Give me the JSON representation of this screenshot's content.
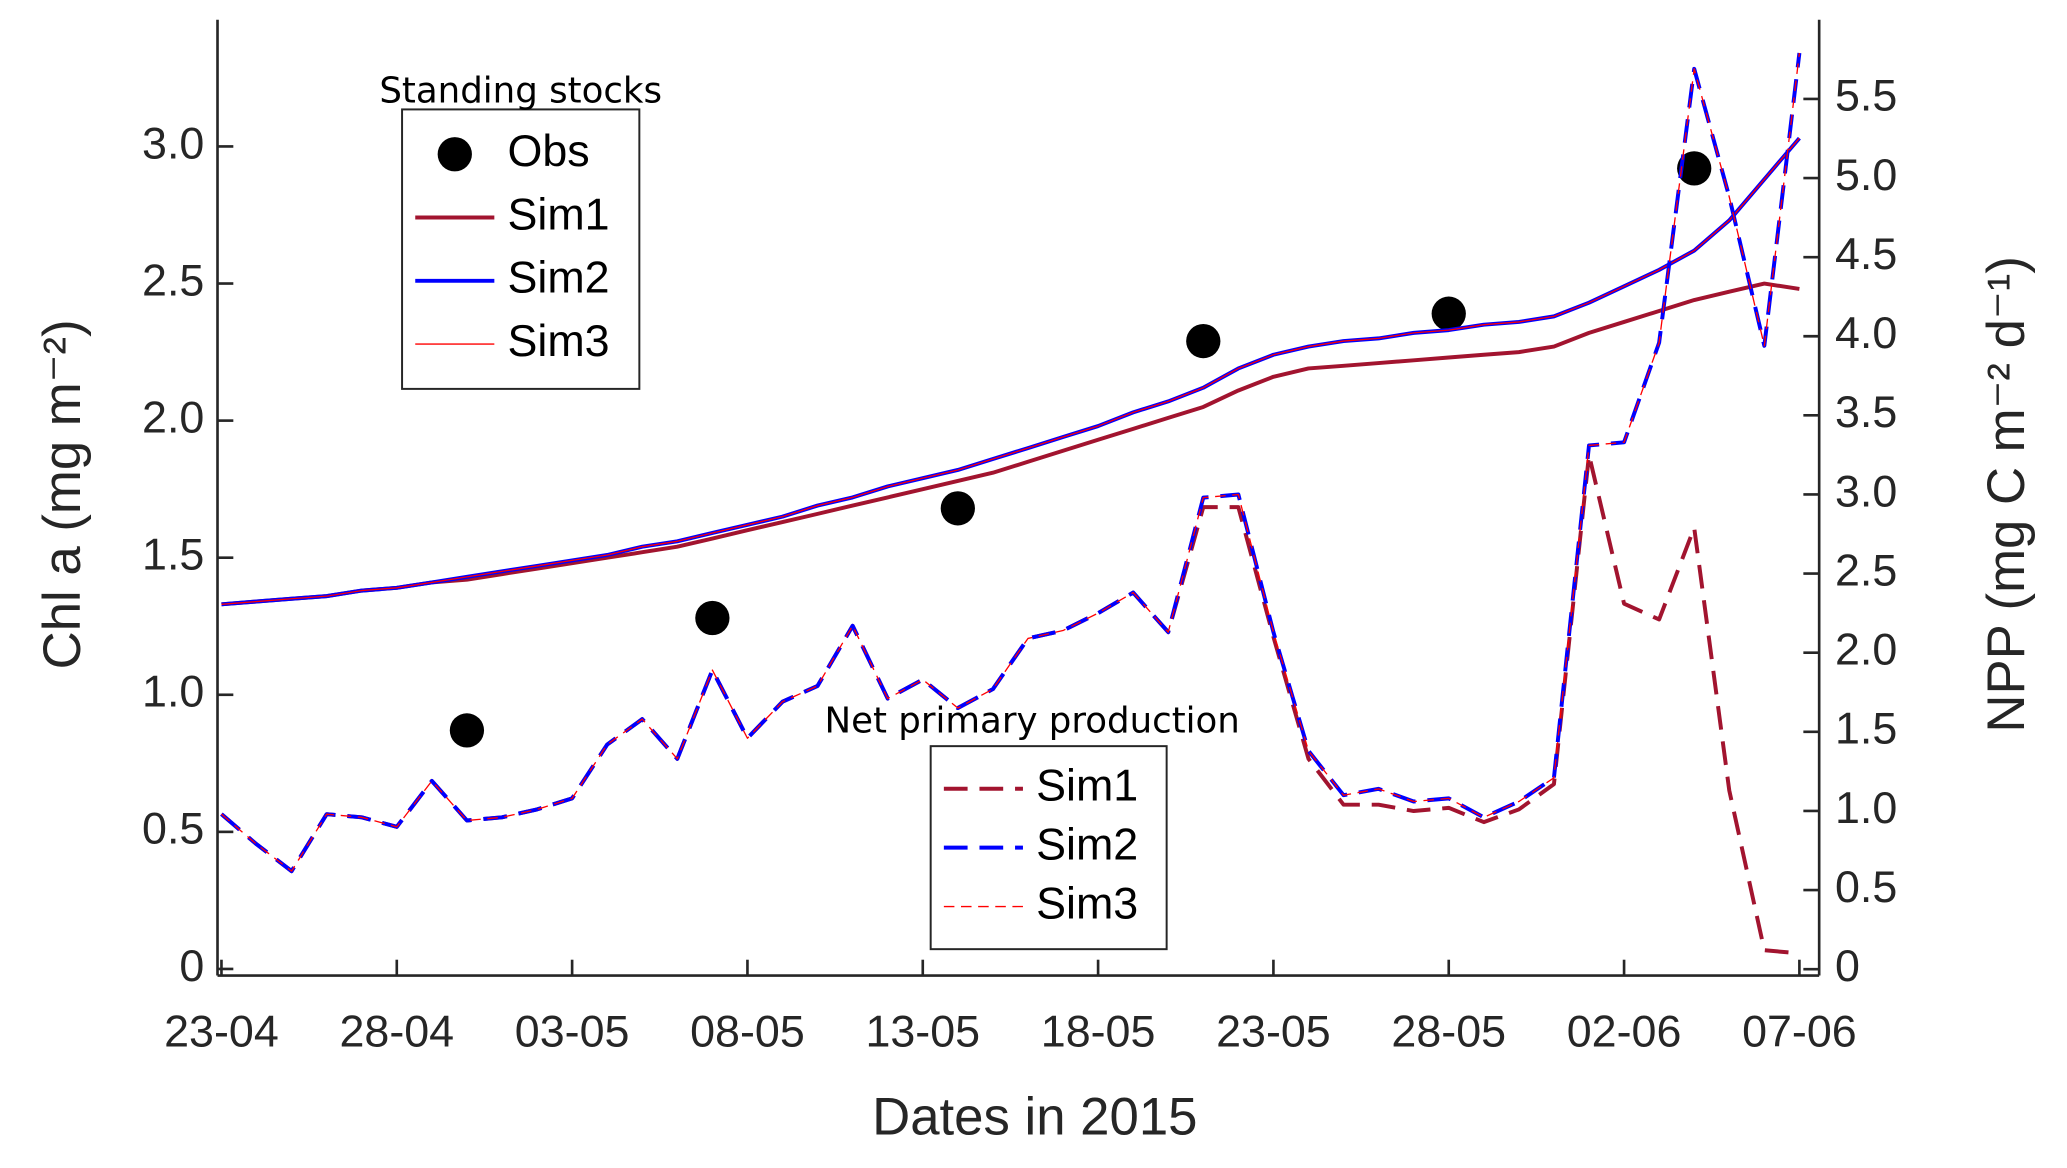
{
  "chart_data": {
    "type": "line",
    "xlabel": "Dates in 2015",
    "ylabel": "Chl a (mg m⁻²)",
    "y2label": "NPP (mg C m⁻² d⁻¹)",
    "x": [
      "23-04",
      "24-04",
      "25-04",
      "26-04",
      "27-04",
      "28-04",
      "29-04",
      "30-04",
      "01-05",
      "02-05",
      "03-05",
      "04-05",
      "05-05",
      "06-05",
      "07-05",
      "08-05",
      "09-05",
      "10-05",
      "11-05",
      "12-05",
      "13-05",
      "14-05",
      "15-05",
      "16-05",
      "17-05",
      "18-05",
      "19-05",
      "20-05",
      "21-05",
      "22-05",
      "23-05",
      "24-05",
      "25-05",
      "26-05",
      "27-05",
      "28-05",
      "29-05",
      "30-05",
      "31-05",
      "01-06",
      "02-06",
      "03-06",
      "04-06",
      "05-06",
      "06-06",
      "07-06"
    ],
    "xticks": [
      "23-04",
      "28-04",
      "03-05",
      "08-05",
      "13-05",
      "18-05",
      "23-05",
      "28-05",
      "02-06",
      "07-06"
    ],
    "ylim": [
      -0.024,
      3.462
    ],
    "yticks": [
      0,
      0.5,
      {
        "value": 1,
        "label": "1.0"
      },
      1.5,
      {
        "value": 2,
        "label": "2.0"
      },
      2.5,
      {
        "value": 3,
        "label": "3.0"
      }
    ],
    "y2lim": [
      -0.04,
      6.0
    ],
    "y2ticks": [
      0,
      0.5,
      {
        "value": 1,
        "label": "1.0"
      },
      1.5,
      {
        "value": 2,
        "label": "2.0"
      },
      2.5,
      {
        "value": 3,
        "label": "3.0"
      },
      3.5,
      {
        "value": 4,
        "label": "4.0"
      },
      4.5,
      {
        "value": 5,
        "label": "5.0"
      },
      5.5
    ],
    "series_groups": [
      {
        "title": "Standing stocks",
        "series": [
          {
            "name": "Obs",
            "color": "#000000",
            "style": "markers",
            "axis": "y",
            "values": [
              null,
              null,
              null,
              null,
              null,
              null,
              null,
              0.87,
              null,
              null,
              null,
              null,
              null,
              null,
              1.28,
              null,
              null,
              null,
              null,
              null,
              null,
              1.68,
              null,
              null,
              null,
              null,
              null,
              null,
              2.29,
              null,
              null,
              null,
              null,
              null,
              null,
              2.39,
              null,
              null,
              null,
              null,
              null,
              null,
              2.92,
              null,
              null,
              null
            ]
          },
          {
            "name": "Sim1",
            "color": "#a2142f",
            "style": "solid",
            "width": 3,
            "axis": "y",
            "values": [
              1.33,
              1.34,
              1.35,
              1.36,
              1.38,
              1.39,
              1.41,
              1.42,
              1.44,
              1.46,
              1.48,
              1.5,
              1.52,
              1.54,
              1.57,
              1.6,
              1.63,
              1.66,
              1.69,
              1.72,
              1.75,
              1.78,
              1.81,
              1.85,
              1.89,
              1.93,
              1.97,
              2.01,
              2.05,
              2.11,
              2.16,
              2.19,
              2.2,
              2.21,
              2.22,
              2.23,
              2.24,
              2.25,
              2.27,
              2.32,
              2.36,
              2.4,
              2.44,
              2.47,
              2.5,
              2.48
            ]
          },
          {
            "name": "Sim2",
            "color": "#0000ff",
            "style": "solid",
            "width": 3,
            "axis": "y",
            "values": [
              1.33,
              1.34,
              1.35,
              1.36,
              1.38,
              1.39,
              1.41,
              1.43,
              1.45,
              1.47,
              1.49,
              1.51,
              1.54,
              1.56,
              1.59,
              1.62,
              1.65,
              1.69,
              1.72,
              1.76,
              1.79,
              1.82,
              1.86,
              1.9,
              1.94,
              1.98,
              2.03,
              2.07,
              2.12,
              2.19,
              2.24,
              2.27,
              2.29,
              2.3,
              2.32,
              2.33,
              2.35,
              2.36,
              2.38,
              2.43,
              2.49,
              2.55,
              2.62,
              2.73,
              2.88,
              3.03
            ]
          },
          {
            "name": "Sim3",
            "color": "#ff0000",
            "style": "solid",
            "width": 1,
            "axis": "y",
            "values": [
              1.33,
              1.34,
              1.35,
              1.36,
              1.38,
              1.39,
              1.41,
              1.43,
              1.45,
              1.47,
              1.49,
              1.51,
              1.54,
              1.56,
              1.59,
              1.62,
              1.65,
              1.69,
              1.72,
              1.76,
              1.79,
              1.82,
              1.86,
              1.9,
              1.94,
              1.98,
              2.03,
              2.07,
              2.12,
              2.19,
              2.24,
              2.27,
              2.29,
              2.3,
              2.32,
              2.33,
              2.35,
              2.36,
              2.38,
              2.43,
              2.49,
              2.55,
              2.62,
              2.73,
              2.88,
              3.03
            ]
          }
        ]
      },
      {
        "title": "Net primary production",
        "series": [
          {
            "name": "Sim1",
            "color": "#a2142f",
            "style": "dashed",
            "width": 3,
            "axis": "y2",
            "values": [
              0.98,
              0.79,
              0.62,
              0.98,
              0.96,
              0.9,
              1.19,
              0.94,
              0.96,
              1.01,
              1.08,
              1.42,
              1.58,
              1.33,
              1.89,
              1.46,
              1.69,
              1.79,
              2.17,
              1.71,
              1.83,
              1.65,
              1.77,
              2.09,
              2.14,
              2.25,
              2.38,
              2.13,
              2.92,
              2.92,
              2.1,
              1.33,
              1.04,
              1.04,
              1.0,
              1.02,
              0.93,
              1.01,
              1.17,
              3.25,
              2.31,
              2.21,
              2.79,
              1.13,
              0.12,
              0.1
            ]
          },
          {
            "name": "Sim2",
            "color": "#0000ff",
            "style": "dashed",
            "width": 3,
            "axis": "y2",
            "values": [
              0.98,
              0.79,
              0.62,
              0.98,
              0.96,
              0.9,
              1.19,
              0.94,
              0.96,
              1.01,
              1.08,
              1.42,
              1.58,
              1.33,
              1.89,
              1.46,
              1.69,
              1.79,
              2.17,
              1.71,
              1.83,
              1.65,
              1.77,
              2.09,
              2.14,
              2.25,
              2.38,
              2.13,
              2.98,
              3.0,
              2.13,
              1.38,
              1.1,
              1.14,
              1.06,
              1.08,
              0.96,
              1.06,
              1.21,
              3.31,
              3.33,
              3.96,
              5.69,
              4.88,
              3.94,
              5.79
            ]
          },
          {
            "name": "Sim3",
            "color": "#ff0000",
            "style": "dashed",
            "width": 1,
            "axis": "y2",
            "values": [
              0.98,
              0.79,
              0.62,
              0.98,
              0.96,
              0.9,
              1.19,
              0.94,
              0.96,
              1.01,
              1.08,
              1.42,
              1.58,
              1.33,
              1.89,
              1.46,
              1.69,
              1.79,
              2.17,
              1.71,
              1.83,
              1.65,
              1.77,
              2.09,
              2.14,
              2.25,
              2.38,
              2.13,
              2.98,
              3.0,
              2.13,
              1.38,
              1.1,
              1.14,
              1.06,
              1.08,
              0.96,
              1.06,
              1.21,
              3.31,
              3.33,
              3.96,
              5.69,
              4.88,
              3.94,
              5.79
            ]
          }
        ]
      }
    ]
  }
}
